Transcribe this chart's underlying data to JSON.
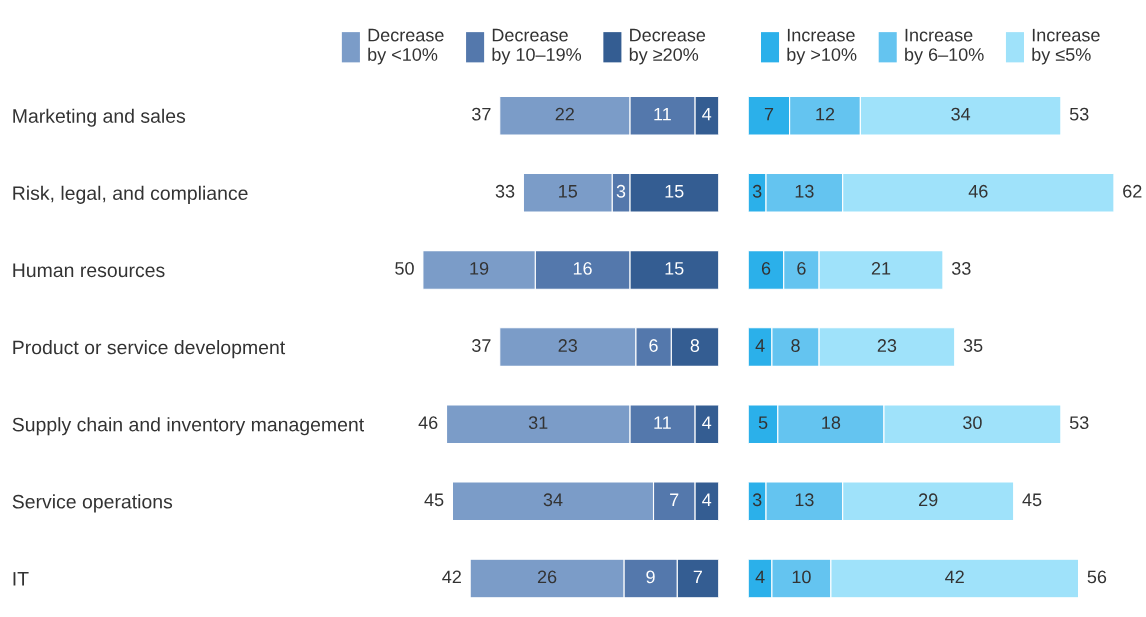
{
  "chart_data": [
    {
      "type": "bar",
      "orientation": "horizontal",
      "stacked": true,
      "data_labels": true,
      "grid": false,
      "legend": "top",
      "tick_labels": "y",
      "categories": [
        "Marketing and sales",
        "Risk, legal, and compliance",
        "Human resources",
        "Product or service development",
        "Supply chain and inventory management",
        "Service operations",
        "IT"
      ],
      "xlim": [
        50,
        0
      ],
      "series": [
        {
          "name": "Decrease\nby ≥20%",
          "color": "#345d92",
          "values": [
            4,
            15,
            15,
            8,
            4,
            4,
            7
          ]
        },
        {
          "name": "Decrease\nby 10–19%",
          "color": "#5478ac",
          "values": [
            11,
            3,
            16,
            6,
            11,
            7,
            9
          ]
        },
        {
          "name": "Decrease\nby <10%",
          "color": "#7b9cc8",
          "values": [
            22,
            15,
            19,
            23,
            31,
            34,
            26
          ]
        }
      ],
      "totals": [
        "37",
        "33",
        "50",
        "37",
        "46",
        "45",
        "42"
      ]
    },
    {
      "type": "bar",
      "orientation": "horizontal",
      "stacked": true,
      "data_labels": true,
      "grid": false,
      "legend": "top",
      "tick_labels": false,
      "categories": [
        null,
        null,
        null,
        null,
        null,
        null,
        null
      ],
      "xlim": [
        0,
        62
      ],
      "series": [
        {
          "name": "Increase\nby >10%",
          "color": "#2bb0ea",
          "values": [
            7,
            3,
            6,
            4,
            5,
            3,
            4
          ]
        },
        {
          "name": "Increase\nby 6–10%",
          "color": "#64c4f0",
          "values": [
            12,
            13,
            6,
            8,
            18,
            13,
            10
          ]
        },
        {
          "name": "Increase\nby ≤5%",
          "color": "#9fe2fa",
          "values": [
            34,
            46,
            21,
            23,
            30,
            29,
            42
          ]
        }
      ],
      "totals": [
        "53",
        "62",
        "33",
        "35",
        "53",
        "45",
        "56"
      ]
    }
  ]
}
